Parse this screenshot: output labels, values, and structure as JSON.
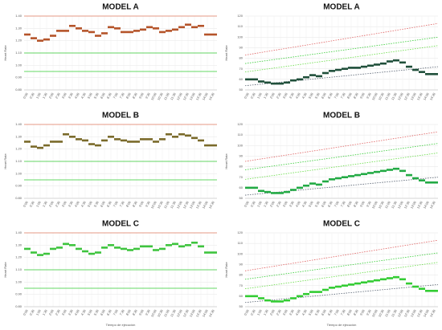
{
  "chart_data": [
    {
      "type": "step",
      "title": "MODEL A",
      "y_label": "Heart Rate",
      "categories": [
        "0:00",
        "0:30",
        "1:00",
        "1:30",
        "2:00",
        "2:30",
        "3:00",
        "3:30",
        "4:00",
        "4:30",
        "5:00",
        "5:30",
        "6:00",
        "6:30",
        "7:00",
        "7:30",
        "8:00",
        "8:30",
        "9:00",
        "9:30",
        "10:00",
        "10:30",
        "11:00",
        "11:30",
        "12:00",
        "12:30",
        "13:00",
        "13:30",
        "14:00",
        "14:30"
      ],
      "series": [
        {
          "color": "#b5542a",
          "values": [
            1.25,
            1.22,
            1.2,
            1.21,
            1.24,
            1.28,
            1.28,
            1.32,
            1.3,
            1.28,
            1.27,
            1.24,
            1.26,
            1.31,
            1.3,
            1.27,
            1.27,
            1.28,
            1.29,
            1.31,
            1.3,
            1.27,
            1.28,
            1.29,
            1.31,
            1.33,
            1.31,
            1.32,
            1.25,
            1.25
          ]
        }
      ],
      "reference_lines": [
        {
          "color": "#e07a5f",
          "values": [
            1.4,
            1.4
          ]
        },
        {
          "color": "#33cc33",
          "values": [
            1.1,
            1.1
          ]
        },
        {
          "color": "#33cc33",
          "values": [
            0.95,
            0.95
          ]
        }
      ],
      "ylim": [
        0.8,
        1.4
      ],
      "yticks": [
        {
          "value": 0.8,
          "label": "0.80"
        },
        {
          "value": 0.9,
          "label": "0.90"
        },
        {
          "value": 1.0,
          "label": "1.00"
        },
        {
          "value": 1.1,
          "label": "1.10"
        },
        {
          "value": 1.2,
          "label": "1.20"
        },
        {
          "value": 1.3,
          "label": "1.30"
        },
        {
          "value": 1.4,
          "label": "1.40"
        }
      ],
      "grid": true
    },
    {
      "type": "step",
      "title": "MODEL A",
      "y_label": "Heart Rate",
      "categories": [
        "0:00",
        "0:30",
        "1:00",
        "1:30",
        "2:00",
        "2:30",
        "3:00",
        "3:30",
        "4:00",
        "4:30",
        "5:00",
        "5:30",
        "6:00",
        "6:30",
        "7:00",
        "7:30",
        "8:00",
        "8:30",
        "9:00",
        "9:30",
        "10:00",
        "10:30",
        "11:00",
        "11:30",
        "12:00",
        "12:30",
        "13:00",
        "13:30",
        "14:00",
        "14:30"
      ],
      "series": [
        {
          "color": "#1f4f3a",
          "values": [
            60,
            60,
            58,
            57,
            56,
            56,
            57,
            59,
            60,
            62,
            64,
            63,
            66,
            68,
            69,
            70,
            71,
            71,
            72,
            73,
            74,
            75,
            77,
            78,
            76,
            72,
            69,
            67,
            65,
            65
          ]
        }
      ],
      "reference_lines": [
        {
          "color": "#e06060",
          "values": [
            83,
            113
          ],
          "dashed": true
        },
        {
          "color": "#33cc33",
          "values": [
            75,
            100
          ],
          "dashed": true
        },
        {
          "color": "#66dd44",
          "values": [
            67,
            92
          ],
          "dashed": true
        },
        {
          "color": "#556070",
          "values": [
            54,
            72
          ],
          "dashed": true
        }
      ],
      "ylim": [
        50,
        120
      ],
      "yticks": [
        50,
        60,
        70,
        80,
        90,
        100,
        110,
        120
      ],
      "grid": true
    },
    {
      "type": "step",
      "title": "MODEL B",
      "y_label": "Heart Rate",
      "categories": [
        "0:00",
        "0:30",
        "1:00",
        "1:30",
        "2:00",
        "2:30",
        "3:00",
        "3:30",
        "4:00",
        "4:30",
        "5:00",
        "5:30",
        "6:00",
        "6:30",
        "7:00",
        "7:30",
        "8:00",
        "8:30",
        "9:00",
        "9:30",
        "10:00",
        "10:30",
        "11:00",
        "11:30",
        "12:00",
        "12:30",
        "13:00",
        "13:30",
        "14:00",
        "14:30"
      ],
      "series": [
        {
          "color": "#7a6a2a",
          "values": [
            1.26,
            1.22,
            1.21,
            1.23,
            1.26,
            1.26,
            1.32,
            1.3,
            1.28,
            1.27,
            1.24,
            1.23,
            1.27,
            1.3,
            1.28,
            1.27,
            1.26,
            1.26,
            1.28,
            1.28,
            1.26,
            1.28,
            1.32,
            1.3,
            1.32,
            1.31,
            1.29,
            1.27,
            1.23,
            1.23
          ]
        }
      ],
      "reference_lines": [
        {
          "color": "#e07a5f",
          "values": [
            1.4,
            1.4
          ]
        },
        {
          "color": "#33cc33",
          "values": [
            1.1,
            1.1
          ]
        },
        {
          "color": "#33cc33",
          "values": [
            0.95,
            0.95
          ]
        }
      ],
      "ylim": [
        0.8,
        1.4
      ],
      "yticks": [
        {
          "value": 0.8,
          "label": "0.80"
        },
        {
          "value": 0.9,
          "label": "0.90"
        },
        {
          "value": 1.0,
          "label": "1.00"
        },
        {
          "value": 1.1,
          "label": "1.10"
        },
        {
          "value": 1.2,
          "label": "1.20"
        },
        {
          "value": 1.3,
          "label": "1.30"
        },
        {
          "value": 1.4,
          "label": "1.40"
        }
      ],
      "grid": true
    },
    {
      "type": "step",
      "title": "MODEL B",
      "y_label": "Heart Rate",
      "categories": [
        "0:00",
        "0:30",
        "1:00",
        "1:30",
        "2:00",
        "2:30",
        "3:00",
        "3:30",
        "4:00",
        "4:30",
        "5:00",
        "5:30",
        "6:00",
        "6:30",
        "7:00",
        "7:30",
        "8:00",
        "8:30",
        "9:00",
        "9:30",
        "10:00",
        "10:30",
        "11:00",
        "11:30",
        "12:00",
        "12:30",
        "13:00",
        "13:30",
        "14:00",
        "14:30"
      ],
      "series": [
        {
          "color": "#22aa44",
          "values": [
            60,
            60,
            57,
            56,
            55,
            55,
            56,
            58,
            60,
            62,
            64,
            63,
            66,
            68,
            69,
            70,
            71,
            72,
            73,
            74,
            75,
            76,
            77,
            78,
            76,
            72,
            69,
            67,
            65,
            65
          ]
        }
      ],
      "reference_lines": [
        {
          "color": "#e06060",
          "values": [
            85,
            113
          ],
          "dashed": true
        },
        {
          "color": "#33cc33",
          "values": [
            77,
            102
          ],
          "dashed": true
        },
        {
          "color": "#66dd44",
          "values": [
            68,
            93
          ],
          "dashed": true
        },
        {
          "color": "#556070",
          "values": [
            53,
            70
          ],
          "dashed": true
        }
      ],
      "ylim": [
        50,
        120
      ],
      "yticks": [
        50,
        60,
        70,
        80,
        90,
        100,
        110,
        120
      ],
      "grid": true
    },
    {
      "type": "step",
      "title": "MODEL C",
      "y_label": "Heart Rate",
      "categories": [
        "0:00",
        "0:30",
        "1:00",
        "1:30",
        "2:00",
        "2:30",
        "3:00",
        "3:30",
        "4:00",
        "4:30",
        "5:00",
        "5:30",
        "6:00",
        "6:30",
        "7:00",
        "7:30",
        "8:00",
        "8:30",
        "9:00",
        "9:30",
        "10:00",
        "10:30",
        "11:00",
        "11:30",
        "12:00",
        "12:30",
        "13:00",
        "13:30",
        "14:00",
        "14:30"
      ],
      "series": [
        {
          "color": "#3ec43e",
          "values": [
            1.27,
            1.24,
            1.22,
            1.23,
            1.27,
            1.28,
            1.31,
            1.3,
            1.27,
            1.25,
            1.23,
            1.24,
            1.28,
            1.3,
            1.28,
            1.27,
            1.26,
            1.27,
            1.29,
            1.29,
            1.26,
            1.27,
            1.3,
            1.31,
            1.29,
            1.3,
            1.32,
            1.29,
            1.24,
            1.24
          ]
        }
      ],
      "reference_lines": [
        {
          "color": "#e07a5f",
          "values": [
            1.4,
            1.4
          ]
        },
        {
          "color": "#33cc33",
          "values": [
            1.1,
            1.1
          ]
        },
        {
          "color": "#33cc33",
          "values": [
            0.95,
            0.95
          ]
        }
      ],
      "ylim": [
        0.8,
        1.4
      ],
      "yticks": [
        {
          "value": 0.8,
          "label": "0.80"
        },
        {
          "value": 0.9,
          "label": "0.90"
        },
        {
          "value": 1.0,
          "label": "1.00"
        },
        {
          "value": 1.1,
          "label": "1.10"
        },
        {
          "value": 1.2,
          "label": "1.20"
        },
        {
          "value": 1.3,
          "label": "1.30"
        },
        {
          "value": 1.4,
          "label": "1.40"
        }
      ],
      "grid": true,
      "x_label": "Tiempo de ejecución"
    },
    {
      "type": "step",
      "title": "MODEL C",
      "y_label": "Heart Rate",
      "categories": [
        "0:00",
        "0:30",
        "1:00",
        "1:30",
        "2:00",
        "2:30",
        "3:00",
        "3:30",
        "4:00",
        "4:30",
        "5:00",
        "5:30",
        "6:00",
        "6:30",
        "7:00",
        "7:30",
        "8:00",
        "8:30",
        "9:00",
        "9:30",
        "10:00",
        "10:30",
        "11:00",
        "11:30",
        "12:00",
        "12:30",
        "13:00",
        "13:30",
        "14:00",
        "14:30"
      ],
      "series": [
        {
          "color": "#33cc33",
          "values": [
            60,
            60,
            58,
            56,
            55,
            55,
            56,
            58,
            60,
            62,
            64,
            64,
            66,
            68,
            69,
            70,
            71,
            72,
            73,
            74,
            75,
            76,
            77,
            78,
            76,
            72,
            69,
            67,
            65,
            65
          ]
        }
      ],
      "reference_lines": [
        {
          "color": "#e06060",
          "values": [
            84,
            113
          ],
          "dashed": true
        },
        {
          "color": "#33cc33",
          "values": [
            76,
            101
          ],
          "dashed": true
        },
        {
          "color": "#66dd44",
          "values": [
            67,
            92
          ],
          "dashed": true
        },
        {
          "color": "#556070",
          "values": [
            54,
            71
          ],
          "dashed": true
        }
      ],
      "ylim": [
        50,
        120
      ],
      "yticks": [
        50,
        60,
        70,
        80,
        90,
        100,
        110,
        120
      ],
      "grid": true,
      "x_label": "Tiempo de ejecución"
    }
  ]
}
